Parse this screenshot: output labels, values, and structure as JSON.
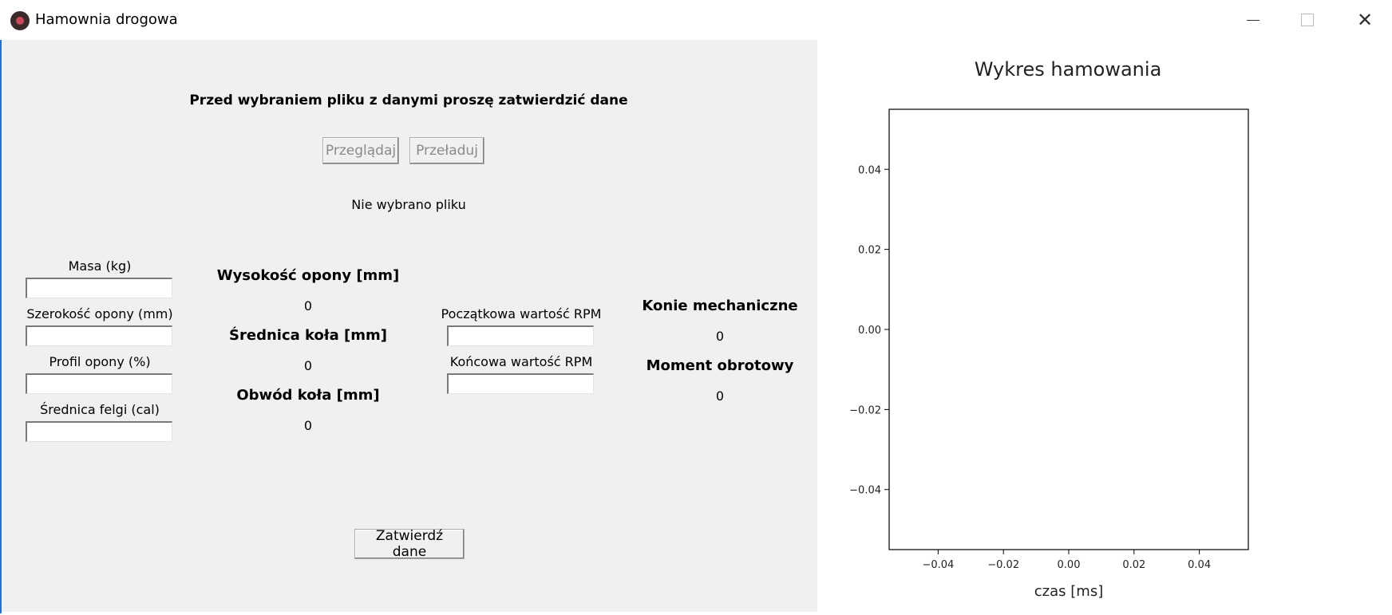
{
  "window": {
    "title": "Hamownia drogowa",
    "minimize_icon": "minimize-icon",
    "maximize_icon": "maximize-icon",
    "close_icon": "close-icon",
    "app_icon": "app-icon"
  },
  "header": {
    "instruction": "Przed wybraniem pliku z danymi proszę zatwierdzić dane"
  },
  "file": {
    "browse_label": "Przeglądaj",
    "reload_label": "Przeładuj",
    "status": "Nie wybrano pliku"
  },
  "inputs": {
    "mass_label": "Masa (kg)",
    "mass_value": "",
    "tire_width_label": "Szerokość opony (mm)",
    "tire_width_value": "",
    "tire_profile_label": "Profil opony (%)",
    "tire_profile_value": "",
    "rim_diameter_label": "Średnica felgi (cal)",
    "rim_diameter_value": ""
  },
  "computed": {
    "tire_height_label": "Wysokość opony [mm]",
    "tire_height_value": "0",
    "wheel_diameter_label": "Średnica koła [mm]",
    "wheel_diameter_value": "0",
    "wheel_circumference_label": "Obwód koła [mm]",
    "wheel_circumference_value": "0"
  },
  "rpm": {
    "start_label": "Początkowa wartość RPM",
    "start_value": "",
    "end_label": "Końcowa wartość RPM",
    "end_value": ""
  },
  "results": {
    "horsepower_label": "Konie mechaniczne",
    "horsepower_value": "0",
    "torque_label": "Moment obrotowy",
    "torque_value": "0"
  },
  "actions": {
    "confirm_label": "Zatwierdź dane"
  },
  "chart_data": {
    "type": "line",
    "title": "Wykres hamowania",
    "xlabel": "czas [ms]",
    "ylabel": "",
    "xlim": [
      -0.055,
      0.055
    ],
    "ylim": [
      -0.055,
      0.055
    ],
    "xticks": [
      -0.04,
      -0.02,
      0.0,
      0.02,
      0.04
    ],
    "xtick_labels": [
      "−0.04",
      "−0.02",
      "0.00",
      "0.02",
      "0.04"
    ],
    "yticks": [
      0.04,
      0.02,
      0.0,
      -0.02,
      -0.04
    ],
    "ytick_labels": [
      "0.04",
      "0.02",
      "0.00",
      "−0.02",
      "−0.04"
    ],
    "series": [],
    "grid": false
  }
}
